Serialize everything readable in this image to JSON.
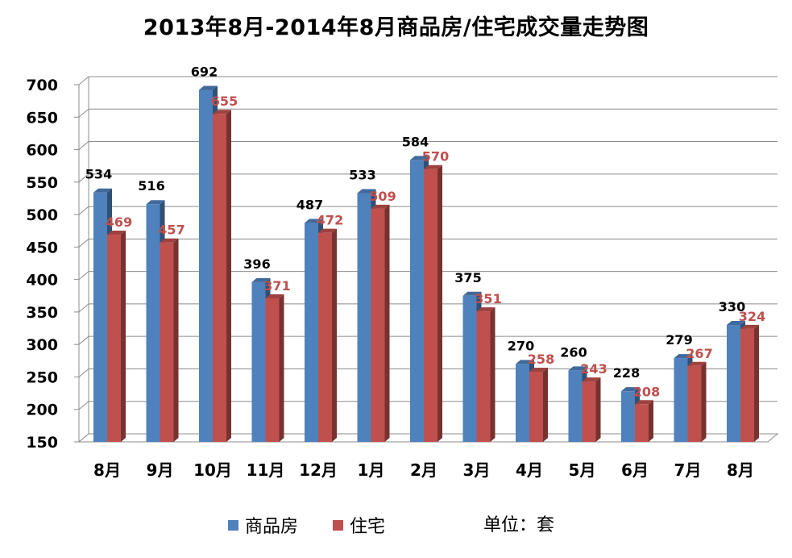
{
  "chart_data": {
    "type": "bar",
    "title": "2013年8月-2014年8月商品房/住宅成交量走势图",
    "categories": [
      "8月",
      "9月",
      "10月",
      "11月",
      "12月",
      "1月",
      "2月",
      "3月",
      "4月",
      "5月",
      "6月",
      "7月",
      "8月"
    ],
    "series": [
      {
        "name": "商品房",
        "color": "#4F81BD",
        "values": [
          534,
          516,
          692,
          396,
          487,
          533,
          584,
          375,
          270,
          260,
          228,
          279,
          330
        ]
      },
      {
        "name": "住宅",
        "color": "#C0504D",
        "values": [
          469,
          457,
          655,
          371,
          472,
          509,
          570,
          351,
          258,
          243,
          208,
          267,
          324
        ]
      }
    ],
    "ylim": [
      150,
      700
    ],
    "yticks": [
      150,
      200,
      250,
      300,
      350,
      400,
      450,
      500,
      550,
      600,
      650,
      700
    ],
    "xlabel": "",
    "ylabel": "",
    "grid": true,
    "legend_position": "bottom-center"
  },
  "unit_note": "单位：套"
}
